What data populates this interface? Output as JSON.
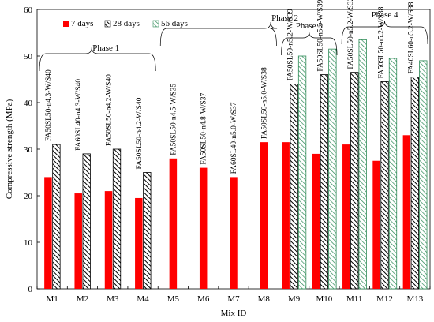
{
  "chart_data": {
    "type": "bar",
    "xlabel": "Mix ID",
    "ylabel": "Compressive strength (MPa)",
    "ylim": [
      0,
      60
    ],
    "yticks": [
      0,
      10,
      20,
      30,
      40,
      50,
      60
    ],
    "grid": false,
    "legend_position": "top-left",
    "categories": [
      "M1",
      "M2",
      "M3",
      "M4",
      "M5",
      "M6",
      "M7",
      "M8",
      "M9",
      "M10",
      "M11",
      "M12",
      "M13"
    ],
    "mix_labels": [
      "FA50SL50-n4.3-W/S40",
      "FA60SL40-n4.3-W/S40",
      "FA50SL50-n4.2-W/S40",
      "FA50SL50-n4.2-W/S40",
      "FA50SL50-n4.5-W/S35",
      "FA50SL50-n4.8-W/S37",
      "FA60SL40-n5.0-W/S37",
      "FA50SL50-n5.0-W/S38",
      "FA50SL50-n5.2-W/S39",
      "FA50SL50-n5.5-W/S39",
      "FA50SL50-n5.2-W/S32",
      "FA50SL50-n5.2-W/S38",
      "FA40SL60-n5.2-W/S38"
    ],
    "series": [
      {
        "name": "7 days",
        "color": "#ff0000",
        "pattern": "solid",
        "values": [
          24,
          20.5,
          21,
          19.5,
          28,
          26,
          24,
          31.5,
          31.5,
          29,
          31,
          27.5,
          33
        ]
      },
      {
        "name": "28 days",
        "color": "#000000",
        "pattern": "diagonal-hatch",
        "values": [
          31,
          29,
          30,
          25,
          null,
          null,
          null,
          null,
          44,
          46,
          46.5,
          44.5,
          45.5
        ]
      },
      {
        "name": "56 days",
        "color": "#2e8b57",
        "pattern": "light-hatch",
        "values": [
          null,
          null,
          null,
          null,
          null,
          null,
          null,
          null,
          50,
          51.5,
          53.5,
          49.5,
          49
        ]
      }
    ],
    "phases": [
      {
        "label": "Phase 1",
        "from": "M1",
        "to": "M4"
      },
      {
        "label": "Phase 2",
        "from": "M5",
        "to": "M8"
      },
      {
        "label": "Phase 3",
        "from": "M9",
        "to": "M10"
      },
      {
        "label": "Phase 4",
        "from": "M11",
        "to": "M13"
      }
    ]
  }
}
